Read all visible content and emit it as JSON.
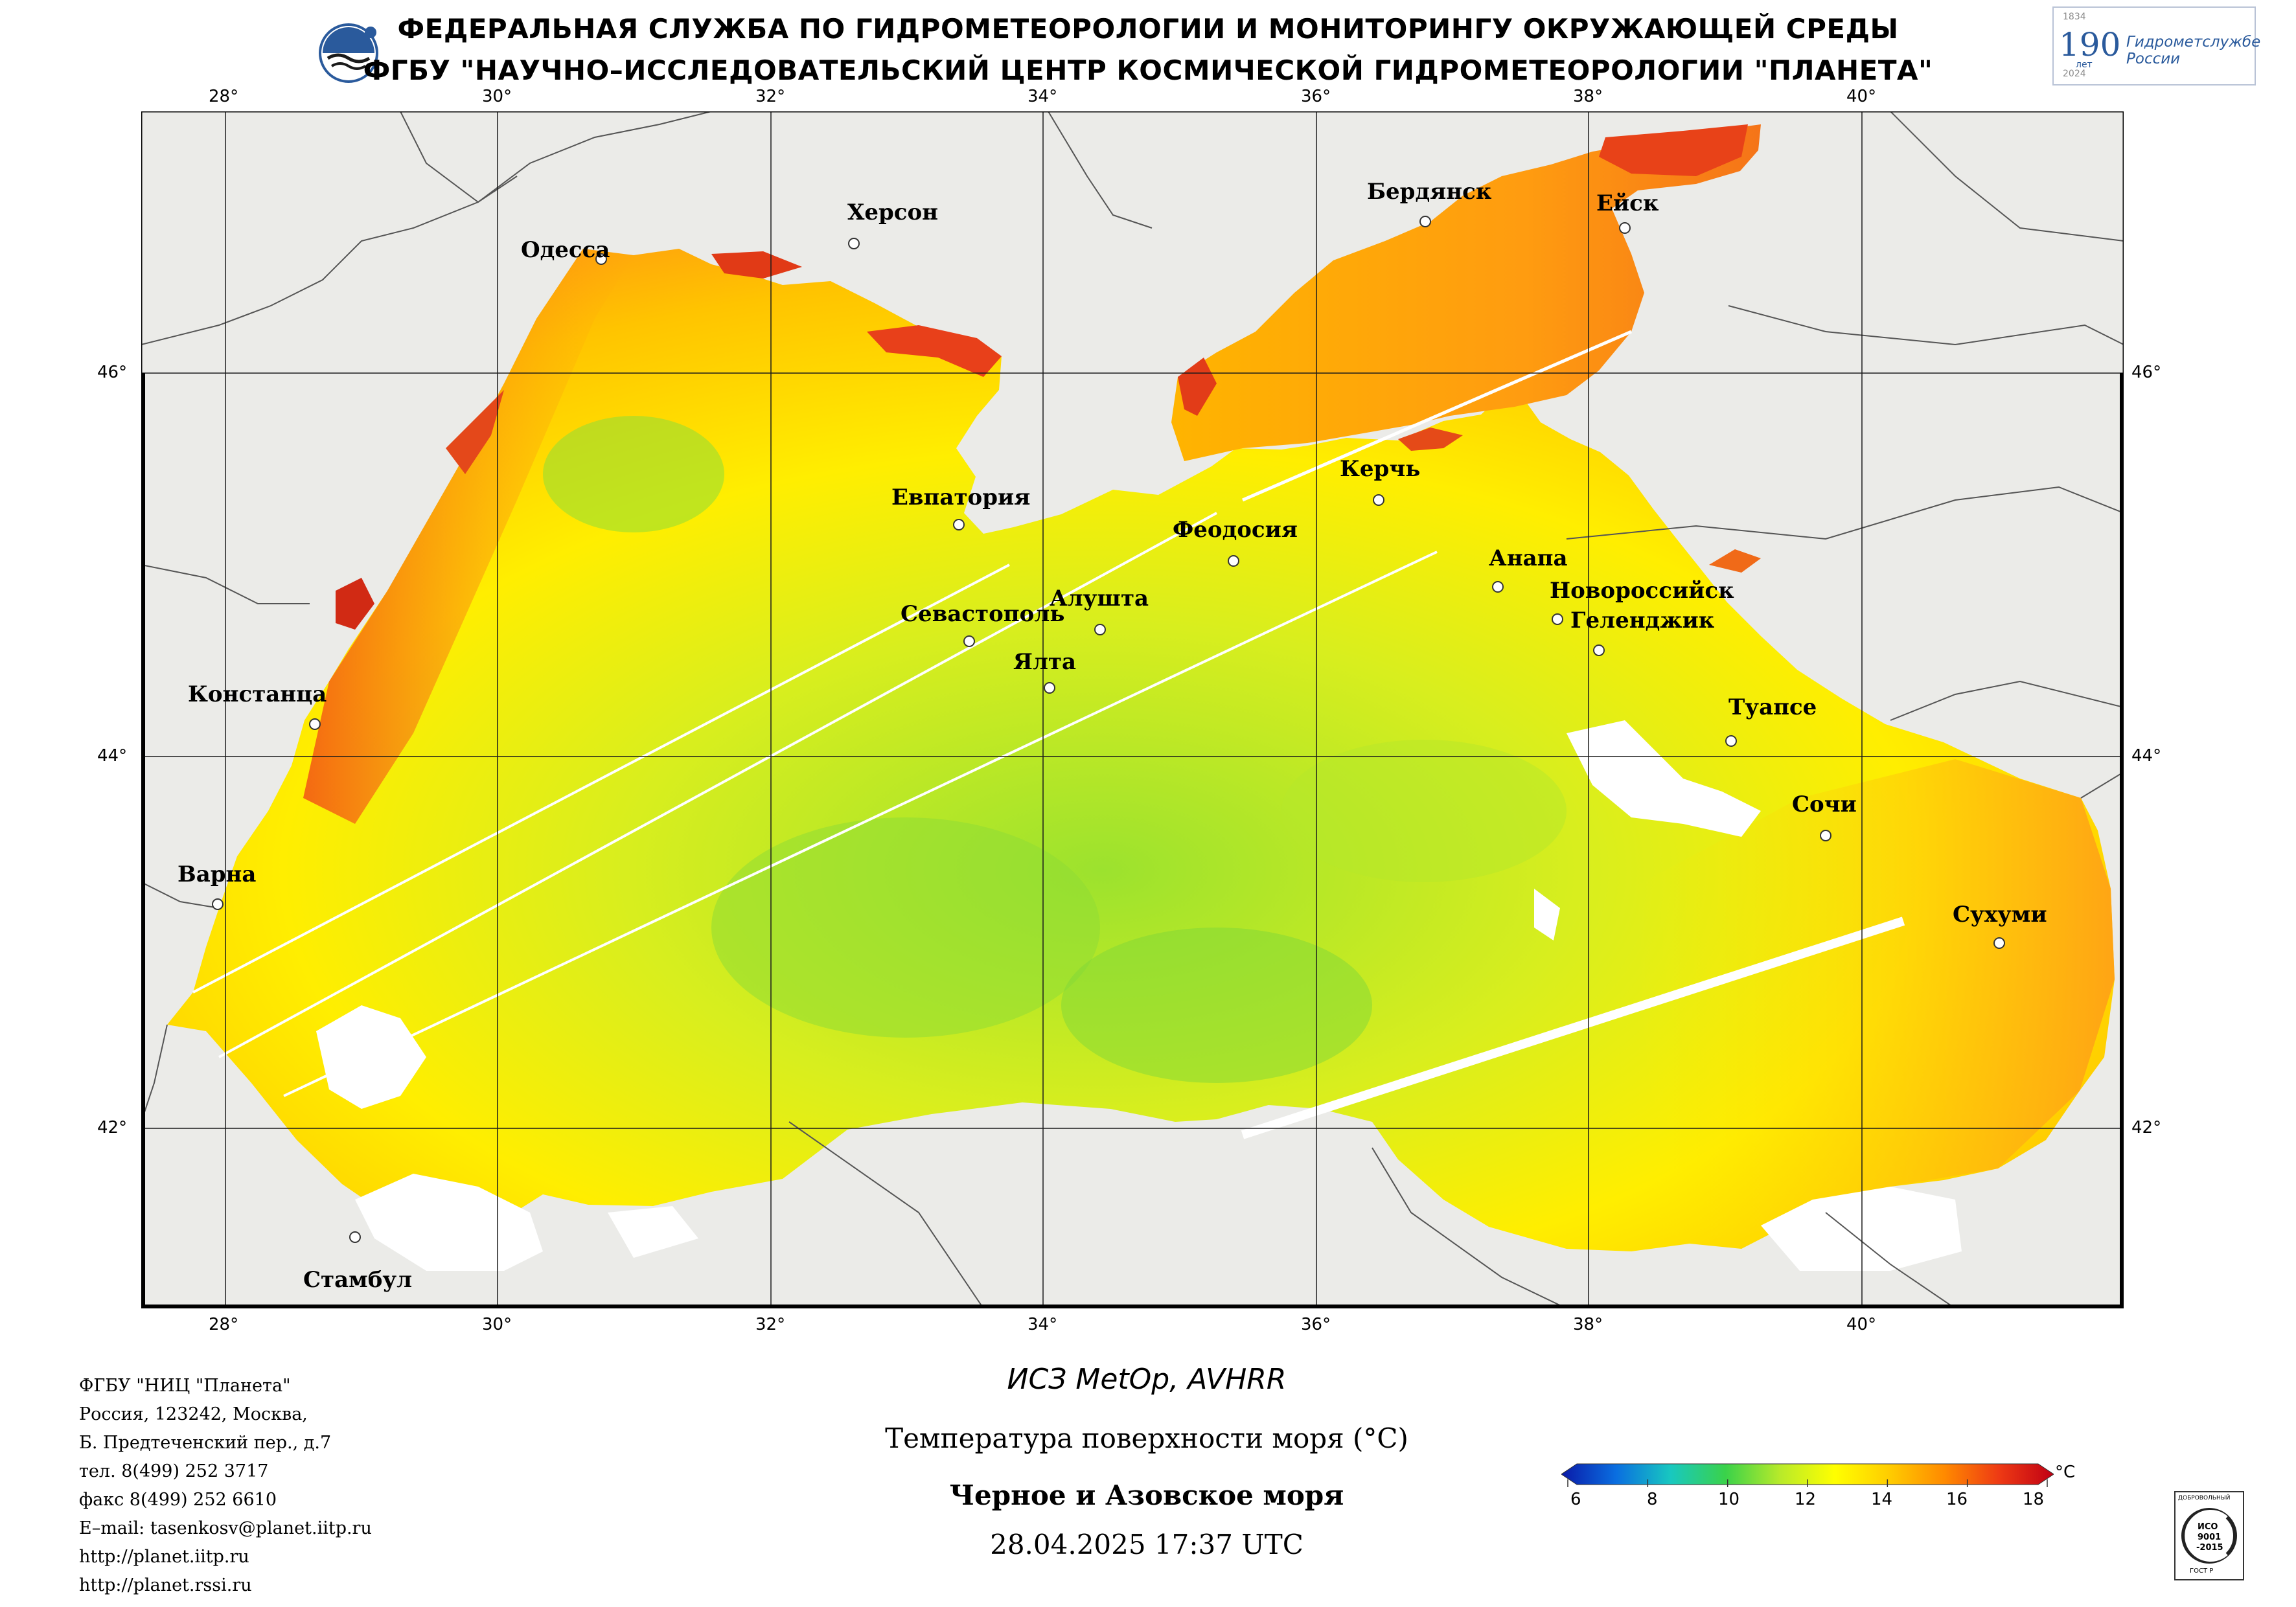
{
  "header": {
    "line1": "ФЕДЕРАЛЬНАЯ СЛУЖБА ПО ГИДРОМЕТЕОРОЛОГИИ И МОНИТОРИНГУ ОКРУЖАЮЩЕЙ СРЕДЫ",
    "line2": "ФГБУ \"НАУЧНО–ИССЛЕДОВАТЕЛЬСКИЙ ЦЕНТР КОСМИЧЕСКОЙ ГИДРОМЕТЕОРОЛОГИИ \"ПЛАНЕТА\""
  },
  "anniversary_badge": {
    "year_start": "1834",
    "number": "190",
    "unit": "лет",
    "text": "Гидрометслужбе России",
    "year_end": "2024"
  },
  "map": {
    "longitude_labels": [
      "28°",
      "30°",
      "32°",
      "34°",
      "36°",
      "38°",
      "40°"
    ],
    "latitude_labels": [
      "46°",
      "44°",
      "42°"
    ],
    "cities": [
      {
        "name": "Одесса"
      },
      {
        "name": "Херсон"
      },
      {
        "name": "Бердянск"
      },
      {
        "name": "Ейск"
      },
      {
        "name": "Евпатория"
      },
      {
        "name": "Керчь"
      },
      {
        "name": "Феодосия"
      },
      {
        "name": "Анапа"
      },
      {
        "name": "Новороссийск"
      },
      {
        "name": "Геленджик"
      },
      {
        "name": "Севастополь"
      },
      {
        "name": "Алушта"
      },
      {
        "name": "Ялта"
      },
      {
        "name": "Констанца"
      },
      {
        "name": "Туапсе"
      },
      {
        "name": "Сочи"
      },
      {
        "name": "Варна"
      },
      {
        "name": "Сухуми"
      },
      {
        "name": "Стамбул"
      }
    ]
  },
  "contact": {
    "org": "ФГБУ \"НИЦ \"Планета\"",
    "address1": "Россия, 123242, Москва,",
    "address2": "Б. Предтеченский пер., д.7",
    "phone": "тел. 8(499) 252 3717",
    "fax": "факс 8(499) 252 6610",
    "email": "E–mail: tasenkosv@planet.iitp.ru",
    "url1": "http://planet.iitp.ru",
    "url2": "http://planet.rssi.ru"
  },
  "caption": {
    "satellite": "ИСЗ MetOp, AVHRR",
    "parameter": "Температура поверхности моря (°C)",
    "region": "Черное и Азовское моря",
    "datetime": "28.04.2025 17:37 UTC"
  },
  "colorbar": {
    "ticks": [
      "6",
      "8",
      "10",
      "12",
      "14",
      "16",
      "18"
    ],
    "unit": "°C",
    "colors": [
      "#0a1aa8",
      "#0a6ee0",
      "#18c8c0",
      "#3ad24a",
      "#b8ea2a",
      "#ffff00",
      "#ffcc00",
      "#ff8a00",
      "#ee3a14",
      "#c00014"
    ]
  },
  "iso_badge": {
    "top": "ДОБРОВОЛЬНЫЙ",
    "mid1": "ИСО",
    "mid2": "9001",
    "mid3": "-2015",
    "bottom": "ГОСТ Р"
  },
  "colors": {
    "land": "#ebebe8",
    "frame": "#000000",
    "grid": "#1a1a1a",
    "cloud": "#ffffff"
  }
}
